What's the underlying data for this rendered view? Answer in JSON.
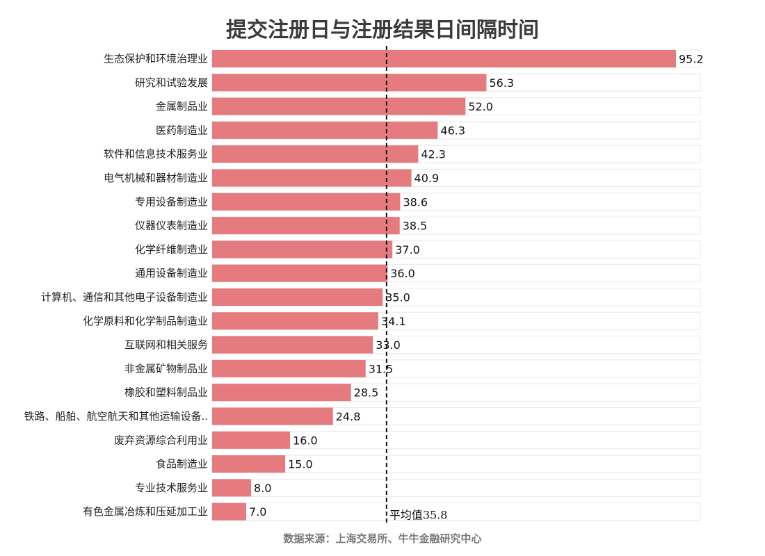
{
  "chart_data": {
    "type": "bar",
    "orientation": "horizontal",
    "title": "提交注册日与注册结果日间隔时间",
    "categories": [
      "生态保护和环境治理业",
      "研究和试验发展",
      "金属制品业",
      "医药制造业",
      "软件和信息技术服务业",
      "电气机械和器材制造业",
      "专用设备制造业",
      "仪器仪表制造业",
      "化学纤维制造业",
      "通用设备制造业",
      "计算机、通信和其他电子设备制造业",
      "化学原料和化学制品制造业",
      "互联网和相关服务",
      "非金属矿物制品业",
      "橡胶和塑料制品业",
      "铁路、船舶、航空航天和其他运输设备..",
      "废弃资源综合利用业",
      "食品制造业",
      "专业技术服务业",
      "有色金属冶炼和压延加工业"
    ],
    "values": [
      95.2,
      56.3,
      52.0,
      46.3,
      42.3,
      40.9,
      38.6,
      38.5,
      37.0,
      36.0,
      35.0,
      34.1,
      33.0,
      31.5,
      28.5,
      24.8,
      16.0,
      15.0,
      8.0,
      7.0
    ],
    "value_labels": [
      "95.2",
      "56.3",
      "52.0",
      "46.3",
      "42.3",
      "40.9",
      "38.6",
      "38.5",
      "37.0",
      "36.0",
      "35.0",
      "34.1",
      "33.0",
      "31.5",
      "28.5",
      "24.8",
      "16.0",
      "15.0",
      "8.0",
      "7.0"
    ],
    "reference_line": {
      "value": 35.8,
      "label": "平均值35.8",
      "style": "dashed"
    },
    "xlim": [
      0,
      100
    ],
    "grid": false,
    "legend": "none",
    "colors": {
      "bar": "#e57b7e",
      "track": "#ffffff",
      "track_border": "#e8e8e8",
      "reference_line": "#111111"
    }
  },
  "source_text": "数据来源：上海交易所、牛牛金融研究中心"
}
